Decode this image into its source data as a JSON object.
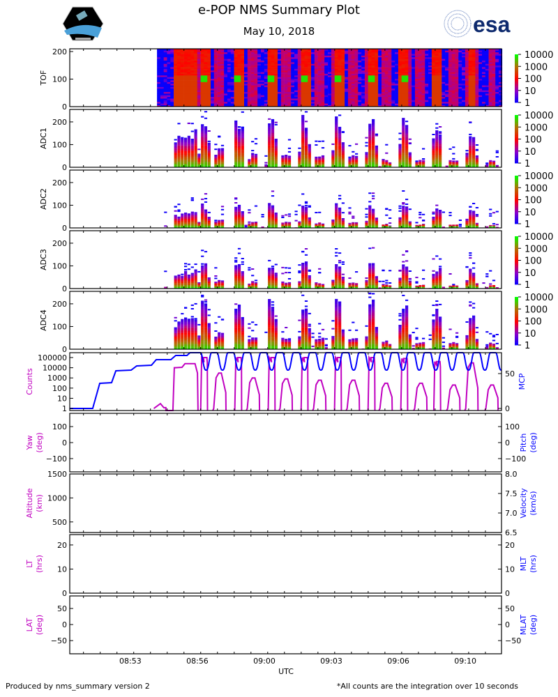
{
  "header": {
    "title": "e-POP NMS Summary Plot",
    "date": "May 10, 2018",
    "left_logo": "CASSIOPE",
    "right_logo": "esa"
  },
  "footer": {
    "left": "Produced by nms_summary version 2",
    "right": "*All counts are the integration over 10 seconds"
  },
  "colors": {
    "counts": "#c000c0",
    "mcp": "#0000ff",
    "spectrogram_low": "#0000ff",
    "spectrogram_mid": "#ff0000",
    "spectrogram_high": "#00ff00"
  },
  "chart_data": {
    "type": "multi-panel time series / spectrogram",
    "xlabel": "UTC",
    "x_units": "minutes after 08:50:00",
    "xlim": [
      0.317,
      21.8
    ],
    "x_ticks": [
      {
        "value": 3.333,
        "label": "08:53"
      },
      {
        "value": 6.667,
        "label": "08:56"
      },
      {
        "value": 10.0,
        "label": "09:00"
      },
      {
        "value": 13.333,
        "label": "09:03"
      },
      {
        "value": 16.667,
        "label": "09:06"
      },
      {
        "value": 20.0,
        "label": "09:10"
      }
    ],
    "colorbar": {
      "scale": "log",
      "range": [
        1,
        10000
      ],
      "labels": [
        "10000",
        "1000",
        "100",
        "10",
        "1"
      ]
    },
    "spectrograms": [
      {
        "ylabel": "TOF",
        "ylim": [
          0,
          210
        ],
        "ticks": [
          "0",
          "100",
          "200"
        ],
        "tick_values": [
          0,
          100,
          200
        ],
        "data_start": 4.66
      },
      {
        "ylabel": "ADC1",
        "ylim": [
          0,
          255
        ],
        "ticks": [
          "0",
          "100",
          "200"
        ],
        "tick_values": [
          0,
          100,
          200
        ],
        "scale": 210
      },
      {
        "ylabel": "ADC2",
        "ylim": [
          0,
          255
        ],
        "ticks": [
          "0",
          "100",
          "200"
        ],
        "tick_values": [
          0,
          100,
          200
        ],
        "scale": 100
      },
      {
        "ylabel": "ADC3",
        "ylim": [
          0,
          255
        ],
        "ticks": [
          "0",
          "100",
          "200"
        ],
        "tick_values": [
          0,
          100,
          200
        ],
        "scale": 110
      },
      {
        "ylabel": "ADC4",
        "ylim": [
          0,
          255
        ],
        "ticks": [
          "0",
          "100",
          "200"
        ],
        "tick_values": [
          0,
          100,
          200
        ],
        "scale": 205
      }
    ],
    "counts_panel": {
      "left_label": "Counts",
      "right_label": "MCP",
      "left_scale": "log",
      "left_ylim": [
        0.63,
        300000
      ],
      "left_ticks": [
        "1",
        "10",
        "100",
        "1000",
        "10000",
        "100000"
      ],
      "left_tick_values": [
        1,
        10,
        100,
        1000,
        10000,
        100000
      ],
      "right_ylim": [
        0,
        83
      ],
      "right_ticks": [
        "0",
        "50"
      ],
      "right_tick_values": [
        0,
        50
      ],
      "counts_early": [
        [
          4.5,
          1
        ],
        [
          4.83,
          3
        ],
        [
          5.0,
          1.2
        ],
        [
          5.1,
          1.2
        ],
        [
          5.1,
          0.5
        ],
        [
          5.45,
          0.5
        ],
        [
          5.52,
          10000
        ],
        [
          5.9,
          11000
        ],
        [
          6.05,
          25000
        ],
        [
          6.55,
          25000
        ],
        [
          6.67,
          3000
        ],
        [
          6.7,
          0.5
        ]
      ],
      "counts_pulses": [
        [
          7.02,
          100000
        ],
        [
          7.78,
          3000
        ],
        [
          8.72,
          100000
        ],
        [
          9.45,
          1000
        ],
        [
          10.38,
          100000
        ],
        [
          11.08,
          800
        ],
        [
          12.02,
          100000
        ],
        [
          12.75,
          600
        ],
        [
          13.68,
          100000
        ],
        [
          14.42,
          600
        ],
        [
          15.35,
          100000
        ],
        [
          16.05,
          300
        ],
        [
          16.98,
          80000
        ],
        [
          17.78,
          300
        ],
        [
          18.62,
          40000
        ],
        [
          19.42,
          200
        ],
        [
          20.32,
          30000
        ],
        [
          21.32,
          200
        ]
      ],
      "mcp_steps": [
        [
          0.317,
          0
        ],
        [
          1.46,
          0
        ],
        [
          1.81,
          36
        ],
        [
          2.4,
          37
        ],
        [
          2.61,
          54
        ],
        [
          3.37,
          55
        ],
        [
          3.65,
          61
        ],
        [
          4.38,
          62
        ],
        [
          4.62,
          70
        ],
        [
          5.35,
          70
        ],
        [
          5.59,
          76
        ],
        [
          6.15,
          76
        ],
        [
          6.3,
          80
        ],
        [
          6.55,
          80
        ]
      ],
      "mcp_oscillation": {
        "start": 6.55,
        "period": 0.816,
        "max": 80,
        "min": 55
      }
    },
    "empty_panels": [
      {
        "left_label": "Yaw",
        "left_unit": "(deg)",
        "right_label": "Pitch",
        "right_unit": "(deg)",
        "ylim": [
          -183,
          183
        ],
        "left_ticks": [
          "−100",
          "0",
          "100"
        ],
        "left_tick_values": [
          -100,
          0,
          100
        ],
        "right_ticks": [
          "−100",
          "0",
          "100"
        ],
        "right_tick_values": [
          -100,
          0,
          100
        ],
        "right_ylim": [
          -183,
          183
        ]
      },
      {
        "left_label": "Altitude",
        "left_unit": "(km)",
        "right_label": "Velocity",
        "right_unit": "(km/s)",
        "ylim": [
          279,
          1500
        ],
        "left_ticks": [
          "500",
          "1000",
          "1500"
        ],
        "left_tick_values": [
          500,
          1000,
          1500
        ],
        "right_ylim": [
          6.5,
          8.0
        ],
        "right_ticks": [
          "6.5",
          "7.0",
          "7.5",
          "8.0"
        ],
        "right_tick_values": [
          6.5,
          7.0,
          7.5,
          8.0
        ]
      },
      {
        "left_label": "LT",
        "left_unit": "(hrs)",
        "right_label": "MLT",
        "right_unit": "(hrs)",
        "ylim": [
          0,
          24.3
        ],
        "left_ticks": [
          "0",
          "10",
          "20"
        ],
        "left_tick_values": [
          0,
          10,
          20
        ],
        "right_ylim": [
          0,
          24.3
        ],
        "right_ticks": [
          "0",
          "10",
          "20"
        ],
        "right_tick_values": [
          0,
          10,
          20
        ]
      },
      {
        "left_label": "LAT",
        "left_unit": "(deg)",
        "right_label": "MLAT",
        "right_unit": "(deg)",
        "ylim": [
          -91,
          89
        ],
        "left_ticks": [
          "−50",
          "0",
          "50"
        ],
        "left_tick_values": [
          -50,
          0,
          50
        ],
        "right_ylim": [
          -91,
          89
        ],
        "right_ticks": [
          "−50",
          "0",
          "50"
        ],
        "right_tick_values": [
          -50,
          0,
          50
        ]
      }
    ]
  }
}
